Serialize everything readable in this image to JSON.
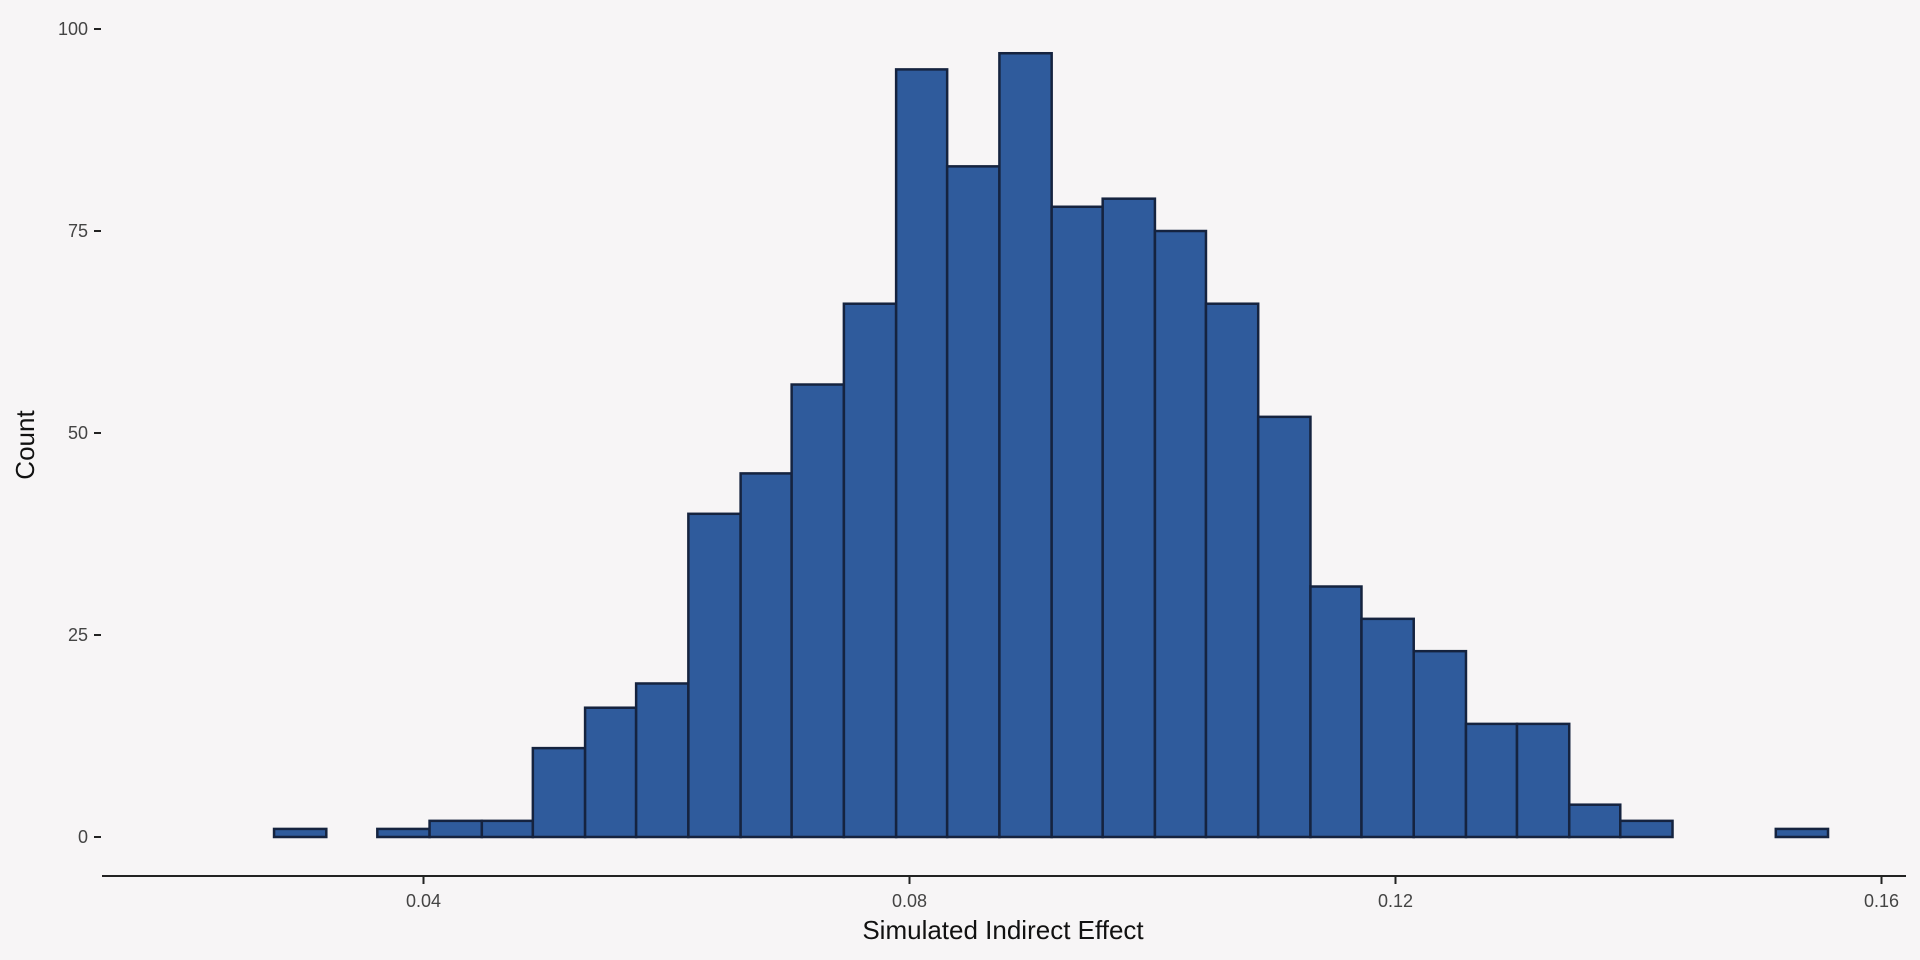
{
  "chart_data": {
    "type": "bar",
    "title": "",
    "xlabel": "Simulated Indirect Effect",
    "ylabel": "Count",
    "xlim": [
      0.02,
      0.16
    ],
    "ylim": [
      0,
      100
    ],
    "x_ticks": [
      {
        "value": 0.04,
        "label": "0.04"
      },
      {
        "value": 0.08,
        "label": "0.08"
      },
      {
        "value": 0.12,
        "label": "0.12"
      },
      {
        "value": 0.16,
        "label": "0.16"
      }
    ],
    "y_ticks": [
      {
        "value": 0,
        "label": "0"
      },
      {
        "value": 25,
        "label": "25"
      },
      {
        "value": 50,
        "label": "50"
      },
      {
        "value": 75,
        "label": "75"
      },
      {
        "value": 100,
        "label": "100"
      }
    ],
    "bins": [
      {
        "x0": 0.0277,
        "x1": 0.032,
        "count": 1
      },
      {
        "x0": 0.032,
        "x1": 0.0362,
        "count": 0
      },
      {
        "x0": 0.0362,
        "x1": 0.0405,
        "count": 1
      },
      {
        "x0": 0.0405,
        "x1": 0.0448,
        "count": 2
      },
      {
        "x0": 0.0448,
        "x1": 0.049,
        "count": 2
      },
      {
        "x0": 0.049,
        "x1": 0.0533,
        "count": 11
      },
      {
        "x0": 0.0533,
        "x1": 0.0575,
        "count": 16
      },
      {
        "x0": 0.0575,
        "x1": 0.0618,
        "count": 19
      },
      {
        "x0": 0.0618,
        "x1": 0.0661,
        "count": 40
      },
      {
        "x0": 0.0661,
        "x1": 0.0703,
        "count": 45
      },
      {
        "x0": 0.0703,
        "x1": 0.0746,
        "count": 56
      },
      {
        "x0": 0.0746,
        "x1": 0.0789,
        "count": 66
      },
      {
        "x0": 0.0789,
        "x1": 0.0831,
        "count": 95
      },
      {
        "x0": 0.0831,
        "x1": 0.0874,
        "count": 83
      },
      {
        "x0": 0.0874,
        "x1": 0.0917,
        "count": 97
      },
      {
        "x0": 0.0917,
        "x1": 0.0959,
        "count": 78
      },
      {
        "x0": 0.0959,
        "x1": 0.1002,
        "count": 79
      },
      {
        "x0": 0.1002,
        "x1": 0.1044,
        "count": 75
      },
      {
        "x0": 0.1044,
        "x1": 0.1087,
        "count": 66
      },
      {
        "x0": 0.1087,
        "x1": 0.113,
        "count": 52
      },
      {
        "x0": 0.113,
        "x1": 0.1172,
        "count": 31
      },
      {
        "x0": 0.1172,
        "x1": 0.1215,
        "count": 27
      },
      {
        "x0": 0.1215,
        "x1": 0.1258,
        "count": 23
      },
      {
        "x0": 0.1258,
        "x1": 0.13,
        "count": 14
      },
      {
        "x0": 0.13,
        "x1": 0.1343,
        "count": 14
      },
      {
        "x0": 0.1343,
        "x1": 0.1385,
        "count": 4
      },
      {
        "x0": 0.1385,
        "x1": 0.1428,
        "count": 2
      },
      {
        "x0": 0.1428,
        "x1": 0.1471,
        "count": 0
      },
      {
        "x0": 0.1471,
        "x1": 0.1513,
        "count": 0
      },
      {
        "x0": 0.1513,
        "x1": 0.1556,
        "count": 1
      }
    ],
    "grid": false,
    "colors": {
      "fill": "#2f5b9c",
      "outline": "#15233f",
      "background": "#f7f5f6"
    }
  }
}
